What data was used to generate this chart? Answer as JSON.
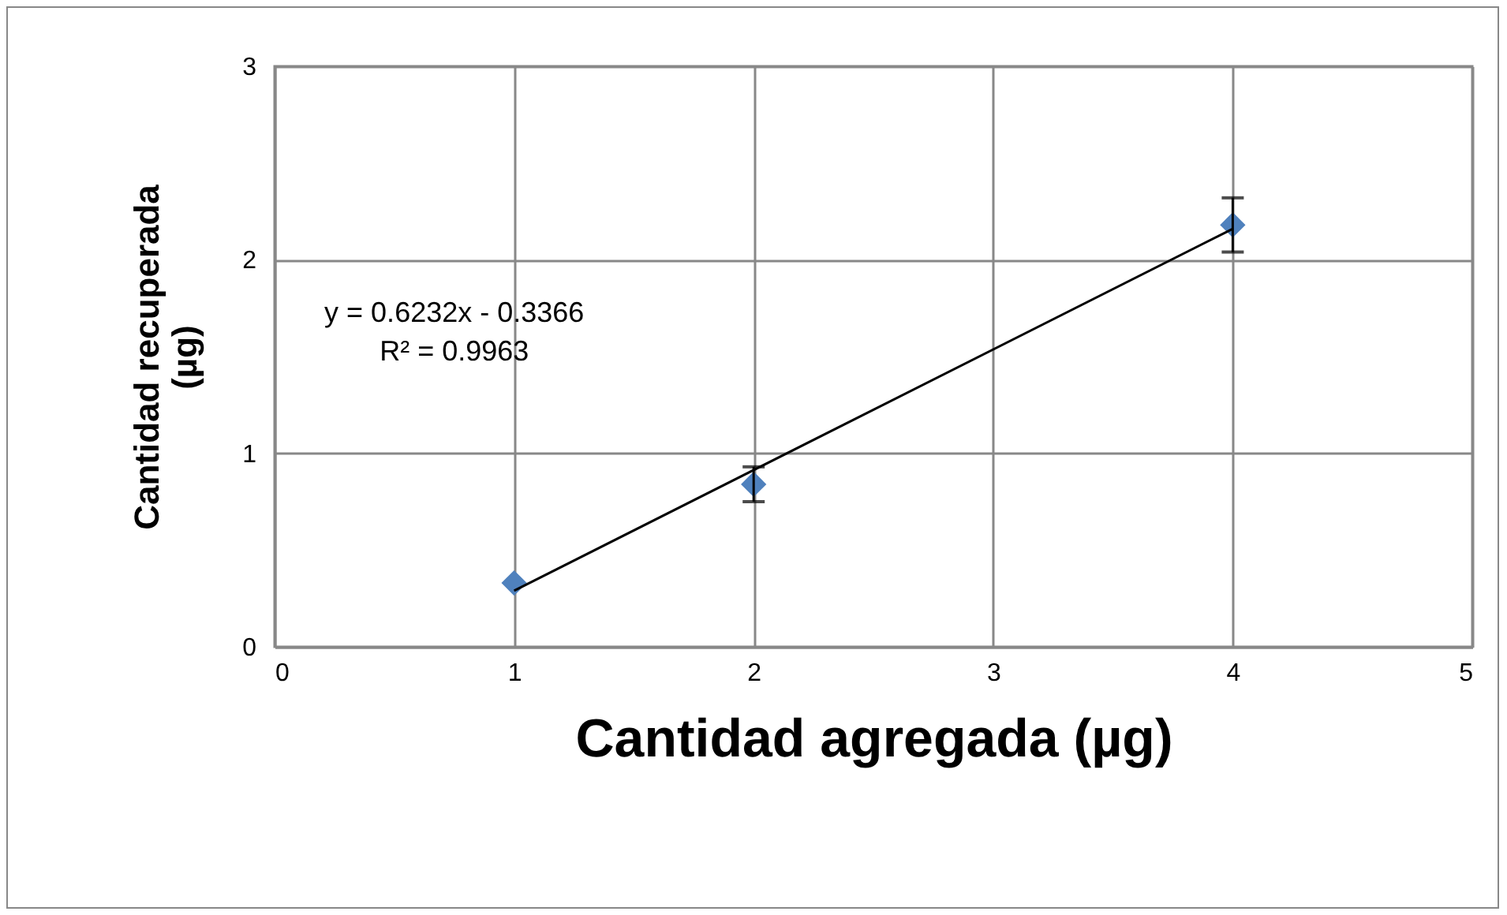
{
  "chart_data": {
    "type": "scatter",
    "xlabel": "Cantidad agregada (µg)",
    "ylabel": "Cantidad recuperada (µg)",
    "xlim": [
      0,
      5
    ],
    "xticks": [
      0,
      1,
      2,
      3,
      4,
      5
    ],
    "ylim": [
      0,
      3
    ],
    "yticks": [
      0,
      1,
      2,
      3
    ],
    "grid": true,
    "annotations": [
      "y = 0.6232x - 0.3366",
      "R² = 0.9963"
    ],
    "series": [
      {
        "marker": "diamond",
        "color": "#4f81bd",
        "x": [
          1,
          2,
          4
        ],
        "values": [
          0.33,
          0.84,
          2.18
        ],
        "errors": [
          null,
          0.09,
          0.14
        ]
      },
      {
        "type": "line",
        "color": "#000000",
        "x": [
          1,
          4
        ],
        "values": [
          0.29,
          2.16
        ]
      }
    ]
  }
}
